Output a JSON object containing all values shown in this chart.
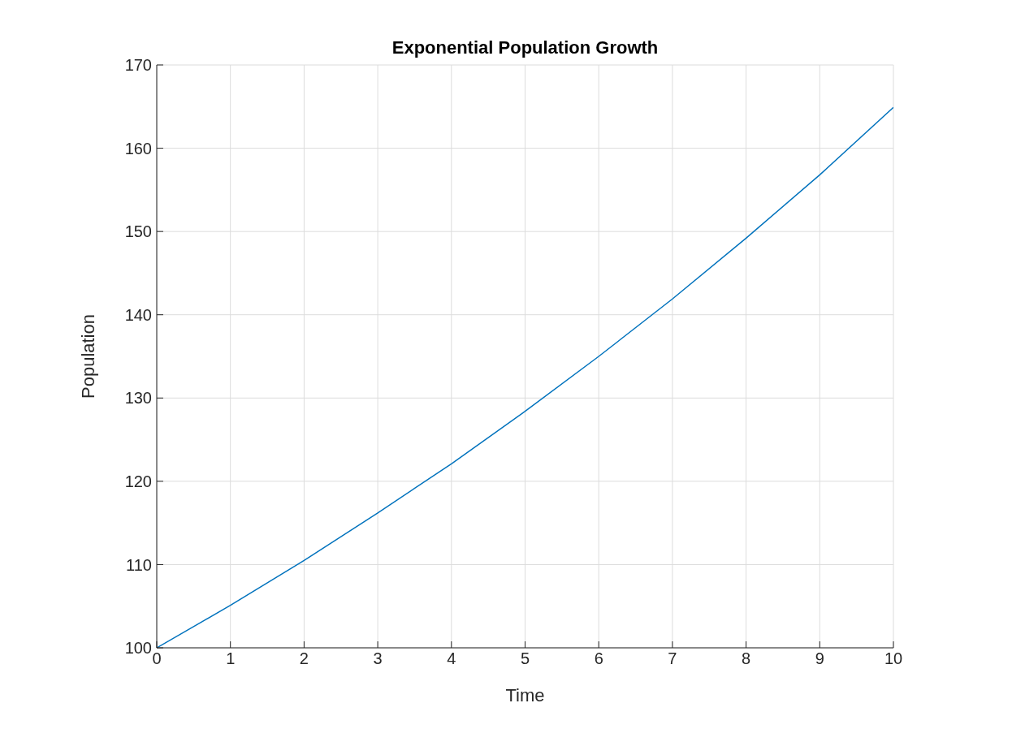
{
  "chart_data": {
    "type": "line",
    "title": "Exponential Population Growth",
    "xlabel": "Time",
    "ylabel": "Population",
    "x": [
      0,
      1,
      2,
      3,
      4,
      5,
      6,
      7,
      8,
      9,
      10
    ],
    "series": [
      {
        "color": "#0072bd",
        "values": [
          100,
          105.1,
          110.5,
          116.2,
          122.1,
          128.4,
          135.0,
          141.9,
          149.2,
          156.8,
          164.9
        ]
      }
    ],
    "xlim": [
      0,
      10
    ],
    "xticks": [
      0,
      1,
      2,
      3,
      4,
      5,
      6,
      7,
      8,
      9,
      10
    ],
    "ylim": [
      100,
      170
    ],
    "yticks": [
      100,
      110,
      120,
      130,
      140,
      150,
      160,
      170
    ],
    "grid": true
  }
}
